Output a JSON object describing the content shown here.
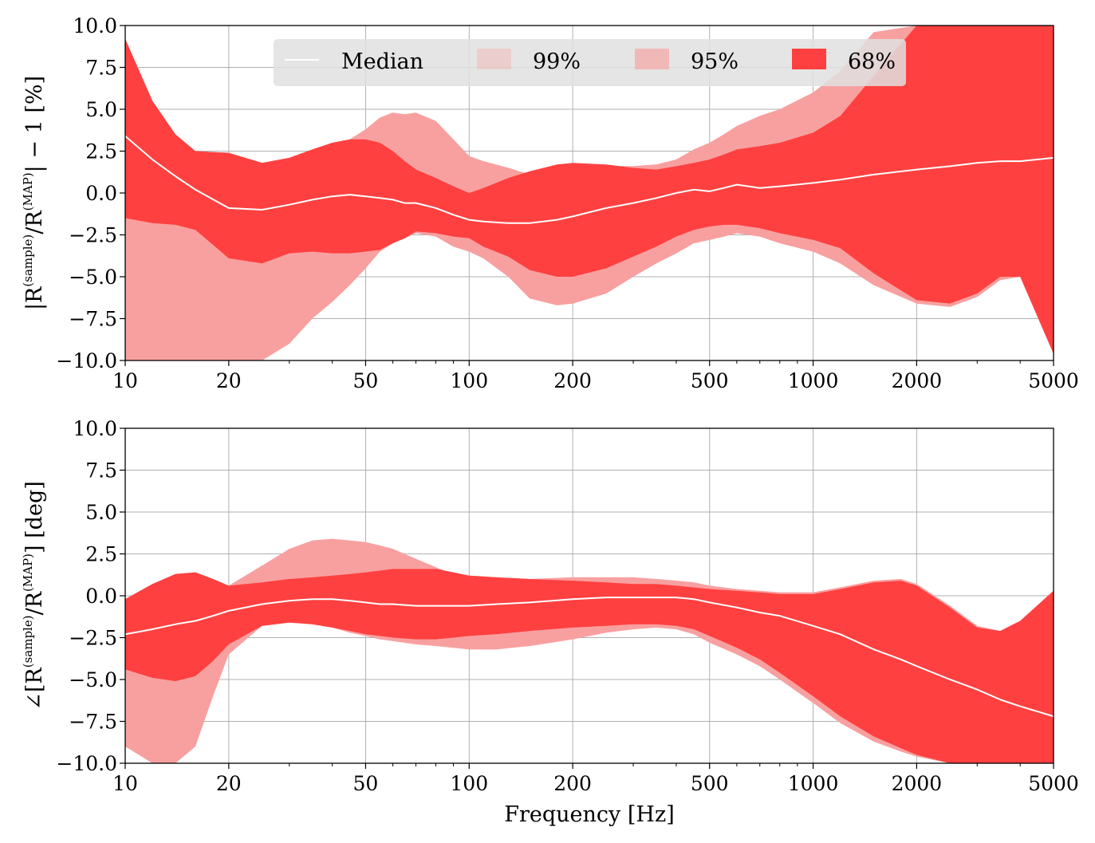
{
  "colors": {
    "band_99": "#f8a0a0",
    "band_95": "#f8a0a0",
    "band_68": "#ff4040",
    "median": "#ffffff",
    "grid": "#b0b0b0",
    "legend_bg": "#e0e0e0"
  },
  "chart_data": [
    {
      "type": "area",
      "id": "magnitude",
      "ylabel": {
        "main": "|R",
        "sup1": "(sample)",
        "mid": "/R",
        "sup2": "(MAP)",
        "tail": "| − 1 [%]"
      },
      "xlabel": "",
      "xscale": "log",
      "xlim": [
        10,
        5000
      ],
      "ylim": [
        -10.0,
        10.0
      ],
      "xticks": [
        10,
        20,
        50,
        100,
        200,
        500,
        1000,
        2000,
        5000
      ],
      "xtick_labels": [
        "10",
        "20",
        "50",
        "100",
        "200",
        "500",
        "1000",
        "2000",
        "5000"
      ],
      "yticks": [
        -10.0,
        -7.5,
        -5.0,
        -2.5,
        0.0,
        2.5,
        5.0,
        7.5,
        10.0
      ],
      "ytick_labels": [
        "−10.0",
        "−7.5",
        "−5.0",
        "−2.5",
        "0.0",
        "2.5",
        "5.0",
        "7.5",
        "10.0"
      ],
      "grid": true,
      "legend": {
        "position": "top-center",
        "entries": [
          {
            "label": "Median",
            "kind": "line"
          },
          {
            "label": "99%",
            "kind": "patch",
            "opacity": 0.35
          },
          {
            "label": "95%",
            "kind": "patch",
            "opacity": 0.65
          },
          {
            "label": "68%",
            "kind": "patch",
            "opacity": 1.0
          }
        ]
      },
      "x": [
        10,
        12,
        14,
        16,
        20,
        25,
        30,
        35,
        40,
        45,
        50,
        55,
        60,
        65,
        70,
        80,
        90,
        100,
        110,
        130,
        150,
        180,
        200,
        250,
        300,
        350,
        400,
        450,
        500,
        550,
        600,
        700,
        800,
        1000,
        1200,
        1500,
        2000,
        2500,
        3000,
        3500,
        4000,
        5000
      ],
      "series": [
        {
          "name": "Median",
          "values": [
            3.4,
            2.0,
            1.0,
            0.2,
            -0.9,
            -1.0,
            -0.7,
            -0.4,
            -0.2,
            -0.1,
            -0.2,
            -0.3,
            -0.4,
            -0.6,
            -0.6,
            -0.9,
            -1.3,
            -1.6,
            -1.7,
            -1.8,
            -1.8,
            -1.6,
            -1.4,
            -0.9,
            -0.6,
            -0.3,
            0.0,
            0.2,
            0.1,
            0.3,
            0.5,
            0.3,
            0.4,
            0.6,
            0.8,
            1.1,
            1.4,
            1.6,
            1.8,
            1.9,
            1.9,
            2.1
          ]
        },
        {
          "name": "99% upper",
          "values": [
            9.2,
            5.5,
            3.5,
            2.5,
            2.4,
            1.8,
            2.1,
            2.6,
            3.0,
            3.2,
            3.8,
            4.5,
            4.8,
            4.7,
            4.8,
            4.3,
            3.2,
            2.2,
            1.9,
            1.5,
            1.1,
            1.2,
            1.4,
            1.6,
            1.6,
            1.7,
            2.0,
            2.6,
            3.0,
            3.5,
            4.0,
            4.6,
            5.0,
            6.0,
            7.3,
            9.6,
            10.0,
            10.0,
            10.0,
            9.6,
            10.0,
            10.0
          ]
        },
        {
          "name": "99% lower",
          "values": [
            -10.0,
            -10.0,
            -10.0,
            -10.0,
            -10.0,
            -10.0,
            -9.0,
            -7.5,
            -6.5,
            -5.5,
            -4.5,
            -3.5,
            -3.0,
            -2.7,
            -2.4,
            -2.6,
            -3.2,
            -3.5,
            -3.9,
            -5.0,
            -6.3,
            -6.7,
            -6.6,
            -6.0,
            -5.0,
            -4.2,
            -3.6,
            -3.0,
            -2.8,
            -2.6,
            -2.4,
            -2.6,
            -3.0,
            -3.5,
            -4.2,
            -5.5,
            -6.6,
            -6.8,
            -6.2,
            -5.2,
            -5.0,
            -9.6
          ]
        },
        {
          "name": "95% upper",
          "values": [
            9.2,
            5.5,
            3.5,
            2.5,
            2.4,
            1.8,
            2.1,
            2.6,
            3.0,
            3.2,
            3.8,
            4.5,
            4.8,
            4.7,
            4.8,
            4.3,
            3.2,
            2.2,
            1.9,
            1.5,
            1.1,
            1.2,
            1.4,
            1.6,
            1.6,
            1.7,
            2.0,
            2.6,
            3.0,
            3.5,
            4.0,
            4.6,
            5.0,
            6.0,
            7.3,
            9.6,
            10.0,
            10.0,
            10.0,
            9.6,
            10.0,
            10.0
          ]
        },
        {
          "name": "95% lower",
          "values": [
            -1.5,
            -1.8,
            -1.9,
            -2.2,
            -3.0,
            -3.6,
            -3.6,
            -3.6,
            -3.6,
            -3.6,
            -3.6,
            -3.5,
            -3.0,
            -2.7,
            -2.4,
            -2.6,
            -3.2,
            -3.5,
            -3.9,
            -5.0,
            -6.3,
            -6.7,
            -6.6,
            -6.0,
            -5.0,
            -4.2,
            -3.6,
            -3.0,
            -2.8,
            -2.6,
            -2.4,
            -2.6,
            -3.0,
            -3.5,
            -4.2,
            -5.5,
            -6.6,
            -6.8,
            -6.2,
            -5.2,
            -5.0,
            -9.6
          ]
        },
        {
          "name": "68% upper",
          "values": [
            9.2,
            5.5,
            3.5,
            2.5,
            2.4,
            1.8,
            2.1,
            2.6,
            3.0,
            3.2,
            3.2,
            3.0,
            2.5,
            1.9,
            1.4,
            0.9,
            0.4,
            0.0,
            0.3,
            0.9,
            1.3,
            1.7,
            1.8,
            1.7,
            1.5,
            1.4,
            1.6,
            1.8,
            2.0,
            2.3,
            2.6,
            2.8,
            3.0,
            3.6,
            4.6,
            7.0,
            10.0,
            10.0,
            10.0,
            10.0,
            10.0,
            10.0
          ]
        },
        {
          "name": "68% lower",
          "values": [
            -1.5,
            -1.8,
            -1.9,
            -2.2,
            -3.9,
            -4.2,
            -3.6,
            -3.5,
            -3.6,
            -3.6,
            -3.5,
            -3.4,
            -3.0,
            -2.7,
            -2.3,
            -2.4,
            -2.6,
            -2.7,
            -3.2,
            -3.8,
            -4.6,
            -5.0,
            -5.0,
            -4.5,
            -3.8,
            -3.2,
            -2.6,
            -2.2,
            -2.0,
            -1.9,
            -1.9,
            -2.1,
            -2.4,
            -2.8,
            -3.3,
            -4.8,
            -6.4,
            -6.6,
            -6.0,
            -5.0,
            -5.0,
            -9.6
          ]
        }
      ]
    },
    {
      "type": "area",
      "id": "phase",
      "ylabel": {
        "main": "∠[R",
        "sup1": "(sample)",
        "mid": "/R",
        "sup2": "(MAP)",
        "tail": "] [deg]"
      },
      "xlabel": "Frequency [Hz]",
      "xscale": "log",
      "xlim": [
        10,
        5000
      ],
      "ylim": [
        -10.0,
        10.0
      ],
      "xticks": [
        10,
        20,
        50,
        100,
        200,
        500,
        1000,
        2000,
        5000
      ],
      "xtick_labels": [
        "10",
        "20",
        "50",
        "100",
        "200",
        "500",
        "1000",
        "2000",
        "5000"
      ],
      "yticks": [
        -10.0,
        -7.5,
        -5.0,
        -2.5,
        0.0,
        2.5,
        5.0,
        7.5,
        10.0
      ],
      "ytick_labels": [
        "−10.0",
        "−7.5",
        "−5.0",
        "−2.5",
        "0.0",
        "2.5",
        "5.0",
        "7.5",
        "10.0"
      ],
      "grid": true,
      "x": [
        10,
        12,
        14,
        16,
        18,
        20,
        25,
        30,
        35,
        40,
        45,
        50,
        55,
        60,
        70,
        80,
        90,
        100,
        120,
        150,
        200,
        250,
        300,
        350,
        400,
        450,
        500,
        600,
        700,
        800,
        1000,
        1200,
        1500,
        1800,
        2000,
        2500,
        3000,
        3500,
        4000,
        5000
      ],
      "series": [
        {
          "name": "Median",
          "values": [
            -2.3,
            -2.0,
            -1.7,
            -1.5,
            -1.2,
            -0.9,
            -0.5,
            -0.3,
            -0.2,
            -0.2,
            -0.3,
            -0.4,
            -0.5,
            -0.5,
            -0.6,
            -0.6,
            -0.6,
            -0.6,
            -0.5,
            -0.4,
            -0.2,
            -0.1,
            -0.1,
            -0.1,
            -0.1,
            -0.2,
            -0.4,
            -0.7,
            -1.0,
            -1.2,
            -1.8,
            -2.3,
            -3.2,
            -3.8,
            -4.2,
            -5.0,
            -5.6,
            -6.2,
            -6.6,
            -7.2
          ]
        },
        {
          "name": "99% upper",
          "values": [
            -0.2,
            0.7,
            1.3,
            1.4,
            1.0,
            0.6,
            1.8,
            2.8,
            3.3,
            3.4,
            3.3,
            3.2,
            3.0,
            2.8,
            2.2,
            1.7,
            1.3,
            1.2,
            1.1,
            1.0,
            1.1,
            1.1,
            1.1,
            1.0,
            0.9,
            0.8,
            0.6,
            0.4,
            0.3,
            0.2,
            0.2,
            0.5,
            0.9,
            1.0,
            0.7,
            -0.6,
            -1.8,
            -2.1,
            -1.5,
            0.3
          ]
        },
        {
          "name": "99% lower",
          "values": [
            -9.0,
            -10.0,
            -10.0,
            -9.0,
            -6.0,
            -3.5,
            -1.8,
            -1.6,
            -1.7,
            -1.9,
            -2.2,
            -2.4,
            -2.6,
            -2.7,
            -2.9,
            -3.0,
            -3.1,
            -3.2,
            -3.2,
            -3.0,
            -2.6,
            -2.2,
            -2.0,
            -1.9,
            -2.0,
            -2.3,
            -2.8,
            -3.5,
            -4.2,
            -5.0,
            -6.4,
            -7.6,
            -8.7,
            -9.3,
            -9.6,
            -10.0,
            -10.0,
            -10.0,
            -10.0,
            -10.0
          ]
        },
        {
          "name": "95% upper",
          "values": [
            -0.2,
            0.7,
            1.3,
            1.4,
            1.0,
            0.6,
            1.8,
            2.8,
            3.3,
            3.4,
            3.3,
            3.2,
            3.0,
            2.8,
            2.2,
            1.7,
            1.3,
            1.2,
            1.1,
            1.0,
            1.1,
            1.1,
            1.1,
            1.0,
            0.9,
            0.8,
            0.6,
            0.4,
            0.3,
            0.2,
            0.2,
            0.5,
            0.9,
            1.0,
            0.7,
            -0.6,
            -1.8,
            -2.1,
            -1.5,
            0.3
          ]
        },
        {
          "name": "95% lower",
          "values": [
            -4.4,
            -4.9,
            -5.1,
            -4.8,
            -3.9,
            -2.9,
            -1.8,
            -1.6,
            -1.7,
            -1.9,
            -2.2,
            -2.4,
            -2.6,
            -2.7,
            -2.9,
            -3.0,
            -3.1,
            -3.2,
            -3.2,
            -3.0,
            -2.6,
            -2.2,
            -2.0,
            -1.9,
            -2.0,
            -2.3,
            -2.8,
            -3.5,
            -4.2,
            -5.0,
            -6.4,
            -7.6,
            -8.7,
            -9.3,
            -9.6,
            -10.0,
            -10.0,
            -10.0,
            -10.0,
            -10.0
          ]
        },
        {
          "name": "68% upper",
          "values": [
            -0.2,
            0.7,
            1.3,
            1.4,
            1.0,
            0.6,
            0.8,
            1.0,
            1.1,
            1.2,
            1.3,
            1.4,
            1.5,
            1.6,
            1.6,
            1.6,
            1.4,
            1.2,
            1.1,
            1.0,
            0.9,
            0.8,
            0.7,
            0.7,
            0.6,
            0.5,
            0.4,
            0.3,
            0.2,
            0.1,
            0.1,
            0.4,
            0.8,
            0.9,
            0.6,
            -0.7,
            -1.9,
            -2.1,
            -1.5,
            0.3
          ]
        },
        {
          "name": "68% lower",
          "values": [
            -4.4,
            -4.9,
            -5.1,
            -4.8,
            -3.9,
            -2.9,
            -1.8,
            -1.6,
            -1.7,
            -1.9,
            -2.1,
            -2.3,
            -2.4,
            -2.5,
            -2.6,
            -2.6,
            -2.5,
            -2.4,
            -2.3,
            -2.1,
            -1.9,
            -1.8,
            -1.7,
            -1.7,
            -1.8,
            -2.0,
            -2.4,
            -3.1,
            -3.8,
            -4.6,
            -6.0,
            -7.2,
            -8.4,
            -9.1,
            -9.5,
            -10.0,
            -10.0,
            -10.0,
            -10.0,
            -10.0
          ]
        }
      ]
    }
  ]
}
